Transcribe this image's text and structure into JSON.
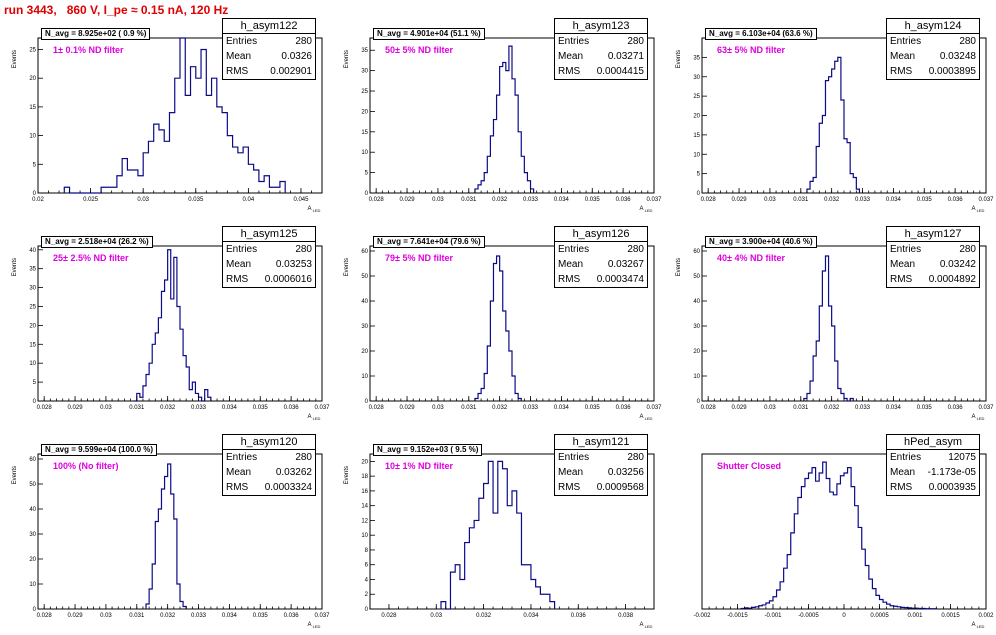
{
  "title": "run 3443,   860 V, I_pe ≈ 0.15 nA, 120 Hz",
  "chart_data": [
    {
      "type": "bar",
      "name": "h_asym122",
      "xlim": [
        0.02,
        0.047
      ],
      "ylim": [
        0,
        27
      ],
      "xticks": [
        "0.02",
        "0.025",
        "0.03",
        "0.035",
        "0.04",
        "0.045"
      ],
      "xtick_vals": [
        0.02,
        0.025,
        0.03,
        0.035,
        0.04,
        0.045
      ],
      "yticks": [
        0,
        5,
        10,
        15,
        20,
        25
      ],
      "ylabel": "Events",
      "xlabel": "A_LED",
      "n_avg": "N_avg = 8.925e+02 ( 0.9 %)",
      "filter": "1± 0.1% ND filter",
      "stats": {
        "title": "h_asym122",
        "entries_label": "Entries",
        "entries": "280",
        "mean_label": "Mean",
        "mean": "0.0326",
        "rms_label": "RMS",
        "rms": "0.002901"
      },
      "bins": {
        "start": 0.0225,
        "width": 0.0005,
        "values": [
          1,
          0,
          0,
          0,
          0,
          0,
          0,
          1,
          1,
          1,
          3,
          6,
          4,
          4,
          3,
          7,
          9,
          12,
          11,
          9,
          14,
          20,
          27,
          17,
          22,
          20,
          25,
          17,
          20,
          15,
          14,
          10,
          8,
          7,
          8,
          5,
          4,
          2,
          3,
          1,
          1,
          2
        ]
      }
    },
    {
      "type": "bar",
      "name": "h_asym123",
      "xlim": [
        0.0278,
        0.037
      ],
      "ylim": [
        0,
        38
      ],
      "xticks": [
        "0.028",
        "0.029",
        "0.03",
        "0.031",
        "0.032",
        "0.033",
        "0.034",
        "0.035",
        "0.036",
        "0.037"
      ],
      "xtick_vals": [
        0.028,
        0.029,
        0.03,
        0.031,
        0.032,
        0.033,
        0.034,
        0.035,
        0.036,
        0.037
      ],
      "yticks": [
        0,
        5,
        10,
        15,
        20,
        25,
        30,
        35
      ],
      "ylabel": "Events",
      "xlabel": "A_LED",
      "n_avg": "N_avg = 4.901e+04 (51.1 %)",
      "filter": "50± 5% ND filter",
      "stats": {
        "title": "h_asym123",
        "entries_label": "Entries",
        "entries": "280",
        "mean_label": "Mean",
        "mean": "0.03271",
        "rms_label": "RMS",
        "rms": "0.0004415"
      },
      "bins": {
        "start": 0.0312,
        "width": 0.0001,
        "values": [
          1,
          2,
          3,
          5,
          9,
          14,
          18,
          24,
          31,
          32,
          30,
          36,
          28,
          24,
          15,
          9,
          5,
          3,
          1
        ]
      }
    },
    {
      "type": "bar",
      "name": "h_asym124",
      "xlim": [
        0.0278,
        0.037
      ],
      "ylim": [
        0,
        40
      ],
      "xticks": [
        "0.028",
        "0.029",
        "0.03",
        "0.031",
        "0.032",
        "0.033",
        "0.034",
        "0.035",
        "0.036",
        "0.037"
      ],
      "xtick_vals": [
        0.028,
        0.029,
        0.03,
        0.031,
        0.032,
        0.033,
        0.034,
        0.035,
        0.036,
        0.037
      ],
      "yticks": [
        0,
        5,
        10,
        15,
        20,
        25,
        30,
        35
      ],
      "ylabel": "Events",
      "xlabel": "A_LED",
      "n_avg": "N_avg = 6.103e+04 (63.6 %)",
      "filter": "63± 5% ND filter",
      "stats": {
        "title": "h_asym124",
        "entries_label": "Entries",
        "entries": "280",
        "mean_label": "Mean",
        "mean": "0.03248",
        "rms_label": "RMS",
        "rms": "0.0003895"
      },
      "bins": {
        "start": 0.0312,
        "width": 0.0001,
        "values": [
          1,
          3,
          4,
          12,
          18,
          20,
          29,
          30,
          32,
          34,
          35,
          24,
          14,
          13,
          5,
          4,
          1
        ]
      }
    },
    {
      "type": "bar",
      "name": "h_asym125",
      "xlim": [
        0.0278,
        0.037
      ],
      "ylim": [
        0,
        41
      ],
      "xticks": [
        "0.028",
        "0.029",
        "0.03",
        "0.031",
        "0.032",
        "0.033",
        "0.034",
        "0.035",
        "0.036",
        "0.037"
      ],
      "xtick_vals": [
        0.028,
        0.029,
        0.03,
        0.031,
        0.032,
        0.033,
        0.034,
        0.035,
        0.036,
        0.037
      ],
      "yticks": [
        0,
        5,
        10,
        15,
        20,
        25,
        30,
        35,
        40
      ],
      "ylabel": "Events",
      "xlabel": "A_LED",
      "n_avg": "N_avg = 2.518e+04 (26.2 %)",
      "filter": "25± 2.5% ND filter",
      "stats": {
        "title": "h_asym125",
        "entries_label": "Entries",
        "entries": "280",
        "mean_label": "Mean",
        "mean": "0.03253",
        "rms_label": "RMS",
        "rms": "0.0006016"
      },
      "bins": {
        "start": 0.0309,
        "width": 0.0001,
        "values": [
          0,
          2,
          1,
          4,
          7,
          10,
          15,
          18,
          22,
          29,
          32,
          40,
          27,
          38,
          25,
          19,
          12,
          9,
          3,
          5,
          2,
          1,
          0,
          3,
          1
        ]
      }
    },
    {
      "type": "bar",
      "name": "h_asym126",
      "xlim": [
        0.0278,
        0.037
      ],
      "ylim": [
        0,
        62
      ],
      "xticks": [
        "0.028",
        "0.029",
        "0.03",
        "0.031",
        "0.032",
        "0.033",
        "0.034",
        "0.035",
        "0.036",
        "0.037"
      ],
      "xtick_vals": [
        0.028,
        0.029,
        0.03,
        0.031,
        0.032,
        0.033,
        0.034,
        0.035,
        0.036,
        0.037
      ],
      "yticks": [
        0,
        10,
        20,
        30,
        40,
        50,
        60
      ],
      "ylabel": "Events",
      "xlabel": "A_LED",
      "n_avg": "N_avg = 7.641e+04 (79.6 %)",
      "filter": "79± 5% ND filter",
      "stats": {
        "title": "h_asym126",
        "entries_label": "Entries",
        "entries": "280",
        "mean_label": "Mean",
        "mean": "0.03267",
        "rms_label": "RMS",
        "rms": "0.0003474"
      },
      "bins": {
        "start": 0.0312,
        "width": 0.0001,
        "values": [
          1,
          3,
          5,
          11,
          22,
          40,
          55,
          58,
          52,
          36,
          28,
          20,
          10,
          3,
          1
        ]
      }
    },
    {
      "type": "bar",
      "name": "h_asym127",
      "xlim": [
        0.0278,
        0.037
      ],
      "ylim": [
        0,
        62
      ],
      "xticks": [
        "0.028",
        "0.029",
        "0.03",
        "0.031",
        "0.032",
        "0.033",
        "0.034",
        "0.035",
        "0.036",
        "0.037"
      ],
      "xtick_vals": [
        0.028,
        0.029,
        0.03,
        0.031,
        0.032,
        0.033,
        0.034,
        0.035,
        0.036,
        0.037
      ],
      "yticks": [
        0,
        10,
        20,
        30,
        40,
        50,
        60
      ],
      "ylabel": "Events",
      "xlabel": "A_LED",
      "n_avg": "N_avg = 3.900e+04 (40.6 %)",
      "filter": "40± 4% ND filter",
      "stats": {
        "title": "h_asym127",
        "entries_label": "Entries",
        "entries": "280",
        "mean_label": "Mean",
        "mean": "0.03242",
        "rms_label": "RMS",
        "rms": "0.0004892"
      },
      "bins": {
        "start": 0.0311,
        "width": 0.0001,
        "values": [
          1,
          3,
          8,
          18,
          24,
          38,
          52,
          58,
          38,
          30,
          16,
          5,
          3,
          1,
          0,
          1
        ]
      }
    },
    {
      "type": "bar",
      "name": "h_asym120",
      "xlim": [
        0.0278,
        0.037
      ],
      "ylim": [
        0,
        62
      ],
      "xticks": [
        "0.028",
        "0.029",
        "0.03",
        "0.031",
        "0.032",
        "0.033",
        "0.034",
        "0.035",
        "0.036",
        "0.037"
      ],
      "xtick_vals": [
        0.028,
        0.029,
        0.03,
        0.031,
        0.032,
        0.033,
        0.034,
        0.035,
        0.036,
        0.037
      ],
      "yticks": [
        0,
        10,
        20,
        30,
        40,
        50,
        60
      ],
      "ylabel": "Events",
      "xlabel": "A_LED",
      "n_avg": "N_avg = 9.599e+04 (100.0 %)",
      "filter": "100% (No filter)",
      "stats": {
        "title": "h_asym120",
        "entries_label": "Entries",
        "entries": "280",
        "mean_label": "Mean",
        "mean": "0.03262",
        "rms_label": "RMS",
        "rms": "0.0003324"
      },
      "bins": {
        "start": 0.0313,
        "width": 0.0001,
        "values": [
          2,
          8,
          18,
          35,
          40,
          48,
          53,
          58,
          46,
          36,
          10,
          3,
          1
        ]
      }
    },
    {
      "type": "bar",
      "name": "h_asym121",
      "xlim": [
        0.0272,
        0.0392
      ],
      "ylim": [
        0,
        21
      ],
      "xticks": [
        "0.028",
        "0.03",
        "0.032",
        "0.034",
        "0.036",
        "0.038"
      ],
      "xtick_vals": [
        0.028,
        0.03,
        0.032,
        0.034,
        0.036,
        0.038
      ],
      "yticks": [
        0,
        2,
        4,
        6,
        8,
        10,
        12,
        14,
        16,
        18,
        20
      ],
      "ylabel": "Events",
      "xlabel": "A_LED",
      "n_avg": "N_avg = 9.152e+03 ( 9.5 %)",
      "filter": "10± 1% ND filter",
      "stats": {
        "title": "h_asym121",
        "entries_label": "Entries",
        "entries": "280",
        "mean_label": "Mean",
        "mean": "0.03256",
        "rms_label": "RMS",
        "rms": "0.0009568"
      },
      "bins": {
        "start": 0.0302,
        "width": 0.0002,
        "values": [
          1,
          0,
          5,
          6,
          4,
          9,
          11,
          12,
          15,
          17,
          20,
          13,
          20,
          19,
          14,
          16,
          13,
          6,
          6,
          4,
          3,
          2,
          2,
          1
        ]
      }
    },
    {
      "type": "bar",
      "name": "hPed_asym",
      "xlim": [
        -0.002,
        0.002
      ],
      "ylim": [
        0,
        570
      ],
      "xticks": [
        "-0.002",
        "-0.0015",
        "-0.001",
        "-0.0005",
        "0",
        "0.0005",
        "0.001",
        "0.0015",
        "0.002"
      ],
      "xtick_vals": [
        -0.002,
        -0.0015,
        -0.001,
        -0.0005,
        0,
        0.0005,
        0.001,
        0.0015,
        0.002
      ],
      "yticks": [],
      "ylabel": "",
      "xlabel": "A_LED",
      "n_avg": "",
      "filter": "Shutter Closed",
      "stats": {
        "title": "hPed_asym",
        "entries_label": "Entries",
        "entries": "12075",
        "mean_label": "Mean",
        "mean": "-1.173e-05",
        "rms_label": "RMS",
        "rms": "0.0003935"
      },
      "bins": {
        "start": -0.00145,
        "width": 5e-05,
        "values": [
          2,
          4,
          3,
          6,
          8,
          12,
          15,
          22,
          30,
          45,
          70,
          100,
          150,
          200,
          280,
          350,
          410,
          450,
          480,
          500,
          520,
          470,
          500,
          540,
          480,
          430,
          420,
          460,
          490,
          500,
          520,
          450,
          380,
          300,
          220,
          160,
          110,
          75,
          50,
          35,
          25,
          18,
          12,
          10,
          8,
          6,
          5,
          4,
          3,
          3,
          2,
          2,
          1,
          1,
          1
        ]
      }
    }
  ]
}
